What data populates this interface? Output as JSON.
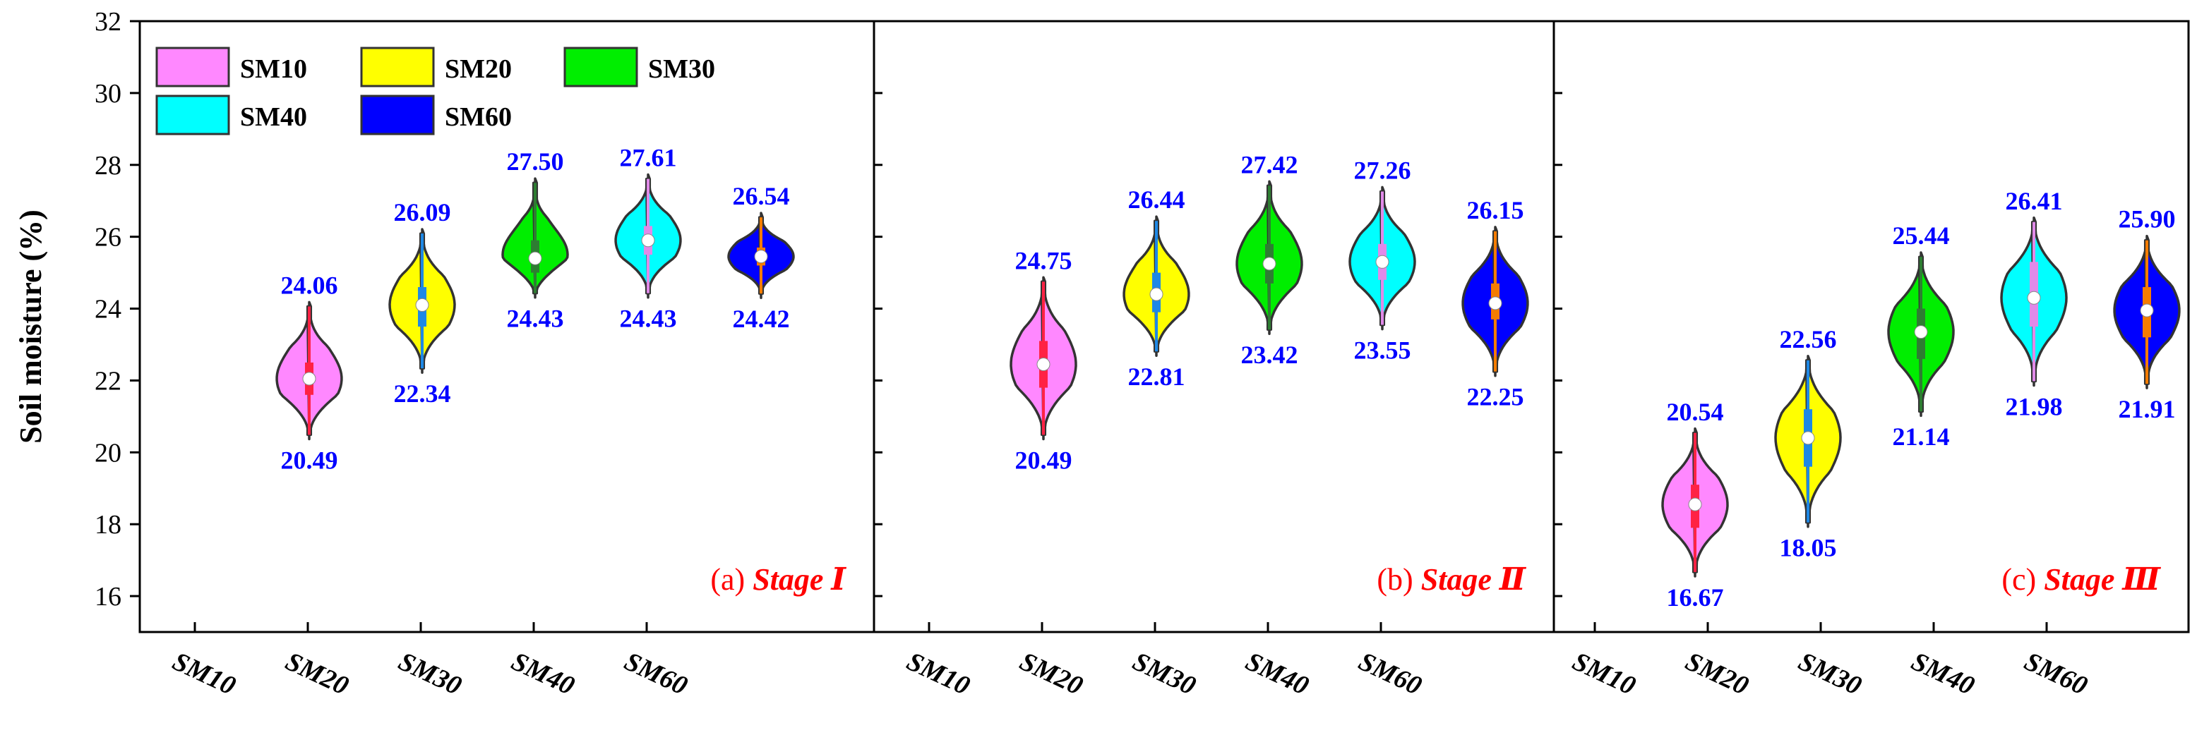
{
  "chart_data": {
    "type": "violin",
    "ylabel": "Soil moisture (%)",
    "ylim": [
      15,
      32
    ],
    "yticks": [
      "16",
      "18",
      "20",
      "22",
      "24",
      "26",
      "28",
      "30",
      "32"
    ],
    "categories": [
      "SM10",
      "SM20",
      "SM30",
      "SM40",
      "SM60"
    ],
    "colors": {
      "SM10": "#ff88ff",
      "SM20": "#ffff00",
      "SM30": "#00ee00",
      "SM40": "#00ffff",
      "SM60": "#0000ff"
    },
    "inner_colors": {
      "SM10": "#ff2244",
      "SM20": "#1e88e5",
      "SM30": "#2e7d32",
      "SM40": "#e08ae8",
      "SM60": "#f57c00"
    },
    "legend": [
      "SM10",
      "SM20",
      "SM30",
      "SM40",
      "SM60"
    ],
    "panels": [
      {
        "label_prefix": "(a)",
        "label_stage": "Stage Ⅰ",
        "violins": [
          {
            "name": "SM10",
            "max": 24.06,
            "min": 20.49,
            "median": 22.05,
            "q1": 21.6,
            "q3": 22.5,
            "max_label": "24.06",
            "min_label": "20.49"
          },
          {
            "name": "SM20",
            "max": 26.09,
            "min": 22.34,
            "median": 24.1,
            "q1": 23.5,
            "q3": 24.6,
            "max_label": "26.09",
            "min_label": "22.34"
          },
          {
            "name": "SM30",
            "max": 27.5,
            "min": 24.43,
            "median": 25.4,
            "q1": 25.0,
            "q3": 25.9,
            "max_label": "27.50",
            "min_label": "24.43"
          },
          {
            "name": "SM40",
            "max": 27.61,
            "min": 24.43,
            "median": 25.9,
            "q1": 25.5,
            "q3": 26.3,
            "max_label": "27.61",
            "min_label": "24.43"
          },
          {
            "name": "SM60",
            "max": 26.54,
            "min": 24.42,
            "median": 25.45,
            "q1": 25.2,
            "q3": 25.7,
            "max_label": "26.54",
            "min_label": "24.42"
          }
        ]
      },
      {
        "label_prefix": "(b)",
        "label_stage": "Stage Ⅱ",
        "violins": [
          {
            "name": "SM10",
            "max": 24.75,
            "min": 20.49,
            "median": 22.45,
            "q1": 21.8,
            "q3": 23.1,
            "max_label": "24.75",
            "min_label": "20.49"
          },
          {
            "name": "SM20",
            "max": 26.44,
            "min": 22.81,
            "median": 24.4,
            "q1": 23.9,
            "q3": 25.0,
            "max_label": "26.44",
            "min_label": "22.81"
          },
          {
            "name": "SM30",
            "max": 27.42,
            "min": 23.42,
            "median": 25.25,
            "q1": 24.7,
            "q3": 25.8,
            "max_label": "27.42",
            "min_label": "23.42"
          },
          {
            "name": "SM40",
            "max": 27.26,
            "min": 23.55,
            "median": 25.3,
            "q1": 24.8,
            "q3": 25.8,
            "max_label": "27.26",
            "min_label": "23.55"
          },
          {
            "name": "SM60",
            "max": 26.15,
            "min": 22.25,
            "median": 24.15,
            "q1": 23.7,
            "q3": 24.7,
            "max_label": "26.15",
            "min_label": "22.25"
          }
        ]
      },
      {
        "label_prefix": "(c)",
        "label_stage": "Stage Ⅲ",
        "violins": [
          {
            "name": "SM10",
            "max": 20.54,
            "min": 16.67,
            "median": 18.55,
            "q1": 17.9,
            "q3": 19.1,
            "max_label": "20.54",
            "min_label": "16.67"
          },
          {
            "name": "SM20",
            "max": 22.56,
            "min": 18.05,
            "median": 20.4,
            "q1": 19.6,
            "q3": 21.2,
            "max_label": "22.56",
            "min_label": "18.05"
          },
          {
            "name": "SM30",
            "max": 25.44,
            "min": 21.14,
            "median": 23.35,
            "q1": 22.6,
            "q3": 24.0,
            "max_label": "25.44",
            "min_label": "21.14"
          },
          {
            "name": "SM40",
            "max": 26.41,
            "min": 21.98,
            "median": 24.3,
            "q1": 23.5,
            "q3": 25.3,
            "max_label": "26.41",
            "min_label": "21.98"
          },
          {
            "name": "SM60",
            "max": 25.9,
            "min": 21.91,
            "median": 23.95,
            "q1": 23.2,
            "q3": 24.6,
            "max_label": "25.90",
            "min_label": "21.91"
          }
        ]
      }
    ]
  }
}
